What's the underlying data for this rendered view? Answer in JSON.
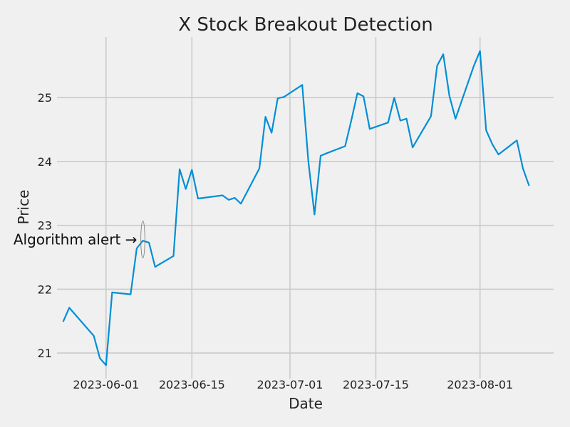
{
  "chart_data": {
    "type": "line",
    "title": "X Stock Breakout Detection",
    "xlabel": "Date",
    "ylabel": "Price",
    "x_type": "date",
    "grid": true,
    "x_ticks": [
      "2023-06-01",
      "2023-06-15",
      "2023-07-01",
      "2023-07-15",
      "2023-08-01"
    ],
    "y_ticks": [
      21,
      22,
      23,
      24,
      25
    ],
    "xlim": [
      "2023-05-24",
      "2023-08-13"
    ],
    "ylim": [
      20.6,
      25.95
    ],
    "series": [
      {
        "color": "#008fd5",
        "x": [
          "2023-05-25",
          "2023-05-26",
          "2023-05-30",
          "2023-05-31",
          "2023-06-01",
          "2023-06-02",
          "2023-06-05",
          "2023-06-06",
          "2023-06-07",
          "2023-06-08",
          "2023-06-09",
          "2023-06-12",
          "2023-06-13",
          "2023-06-14",
          "2023-06-15",
          "2023-06-16",
          "2023-06-20",
          "2023-06-21",
          "2023-06-22",
          "2023-06-23",
          "2023-06-26",
          "2023-06-27",
          "2023-06-28",
          "2023-06-29",
          "2023-06-30",
          "2023-07-03",
          "2023-07-04",
          "2023-07-05",
          "2023-07-06",
          "2023-07-07",
          "2023-07-10",
          "2023-07-11",
          "2023-07-12",
          "2023-07-13",
          "2023-07-14",
          "2023-07-17",
          "2023-07-18",
          "2023-07-19",
          "2023-07-20",
          "2023-07-21",
          "2023-07-24",
          "2023-07-25",
          "2023-07-26",
          "2023-07-27",
          "2023-07-28",
          "2023-07-31",
          "2023-08-01",
          "2023-08-02",
          "2023-08-03",
          "2023-08-04",
          "2023-08-07",
          "2023-08-08",
          "2023-08-09"
        ],
        "y": [
          21.49,
          21.71,
          21.27,
          20.92,
          20.81,
          21.95,
          21.92,
          22.64,
          22.76,
          22.73,
          22.35,
          22.52,
          23.88,
          23.57,
          23.87,
          23.42,
          23.47,
          23.4,
          23.43,
          23.34,
          23.89,
          24.7,
          24.45,
          24.99,
          25.01,
          25.2,
          24.0,
          23.17,
          24.09,
          24.13,
          24.24,
          24.64,
          25.07,
          25.02,
          24.51,
          24.61,
          25.0,
          24.64,
          24.67,
          24.22,
          24.71,
          25.5,
          25.68,
          25.03,
          24.67,
          25.5,
          25.73,
          24.49,
          24.27,
          24.11,
          24.33,
          23.89,
          23.62
        ]
      }
    ],
    "annotations": [
      {
        "text": "Algorithm alert →",
        "x": "2023-06-07",
        "y": 22.78
      }
    ]
  }
}
